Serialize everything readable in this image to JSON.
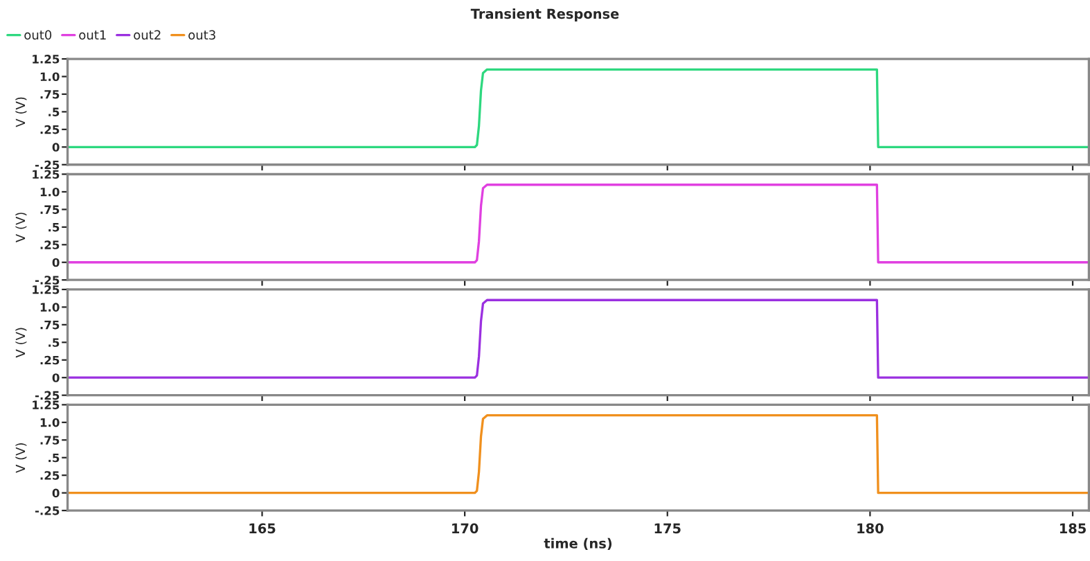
{
  "chart_data": [
    {
      "type": "line",
      "title": "Transient Response",
      "ylabel": "V (V)",
      "legend": "top left",
      "tick_labels": "y",
      "xlim": [
        160.2,
        185.4
      ],
      "xticks": [
        165,
        170,
        175,
        180,
        185
      ],
      "ylim": [
        -0.25,
        1.25
      ],
      "yticks": [
        {
          "value": -0.25,
          "label": "-.25"
        },
        0,
        {
          "value": 0.25,
          "label": ".25"
        },
        {
          "value": 0.5,
          "label": ".5"
        },
        {
          "value": 0.75,
          "label": ".75"
        },
        {
          "value": 1.0,
          "label": "1.0"
        },
        1.25
      ],
      "series": [
        {
          "name": "out0",
          "color": "#2ed87f",
          "x": [
            160.2,
            170.25,
            170.3,
            170.35,
            170.4,
            170.45,
            170.55,
            180.17,
            180.2,
            185.4
          ],
          "values": [
            0,
            0,
            0.03,
            0.3,
            0.8,
            1.05,
            1.1,
            1.1,
            0,
            0
          ]
        }
      ]
    },
    {
      "type": "line",
      "ylabel": "V (V)",
      "tick_labels": "y",
      "xlim": [
        160.2,
        185.4
      ],
      "xticks": [
        165,
        170,
        175,
        180,
        185
      ],
      "ylim": [
        -0.25,
        1.25
      ],
      "yticks": [
        {
          "value": -0.25,
          "label": "-.25"
        },
        0,
        {
          "value": 0.25,
          "label": ".25"
        },
        {
          "value": 0.5,
          "label": ".5"
        },
        {
          "value": 0.75,
          "label": ".75"
        },
        {
          "value": 1.0,
          "label": "1.0"
        },
        1.25
      ],
      "series": [
        {
          "name": "out1",
          "color": "#e040e0",
          "x": [
            160.2,
            170.25,
            170.3,
            170.35,
            170.4,
            170.45,
            170.55,
            180.17,
            180.2,
            185.4
          ],
          "values": [
            0,
            0,
            0.03,
            0.3,
            0.8,
            1.05,
            1.1,
            1.1,
            0,
            0
          ]
        }
      ]
    },
    {
      "type": "line",
      "ylabel": "V (V)",
      "tick_labels": "y",
      "xlim": [
        160.2,
        185.4
      ],
      "xticks": [
        165,
        170,
        175,
        180,
        185
      ],
      "ylim": [
        -0.25,
        1.25
      ],
      "yticks": [
        {
          "value": -0.25,
          "label": "-.25"
        },
        0,
        {
          "value": 0.25,
          "label": ".25"
        },
        {
          "value": 0.5,
          "label": ".5"
        },
        {
          "value": 0.75,
          "label": ".75"
        },
        {
          "value": 1.0,
          "label": "1.0"
        },
        1.25
      ],
      "series": [
        {
          "name": "out2",
          "color": "#9b30e0",
          "x": [
            160.2,
            170.25,
            170.3,
            170.35,
            170.4,
            170.45,
            170.55,
            180.17,
            180.2,
            185.4
          ],
          "values": [
            0,
            0,
            0.03,
            0.3,
            0.8,
            1.05,
            1.1,
            1.1,
            0,
            0
          ]
        }
      ]
    },
    {
      "type": "line",
      "ylabel": "V (V)",
      "xlabel": "time (ns)",
      "xlim": [
        160.2,
        185.4
      ],
      "xticks": [
        165,
        170,
        175,
        180,
        185
      ],
      "ylim": [
        -0.25,
        1.25
      ],
      "yticks": [
        {
          "value": -0.25,
          "label": "-.25"
        },
        0,
        {
          "value": 0.25,
          "label": ".25"
        },
        {
          "value": 0.5,
          "label": ".5"
        },
        {
          "value": 0.75,
          "label": ".75"
        },
        {
          "value": 1.0,
          "label": "1.0"
        },
        1.25
      ],
      "series": [
        {
          "name": "out3",
          "color": "#f0901e",
          "x": [
            160.2,
            170.25,
            170.3,
            170.35,
            170.4,
            170.45,
            170.55,
            180.17,
            180.2,
            185.4
          ],
          "values": [
            0,
            0,
            0.03,
            0.3,
            0.8,
            1.05,
            1.1,
            1.1,
            0,
            0
          ]
        }
      ]
    }
  ]
}
